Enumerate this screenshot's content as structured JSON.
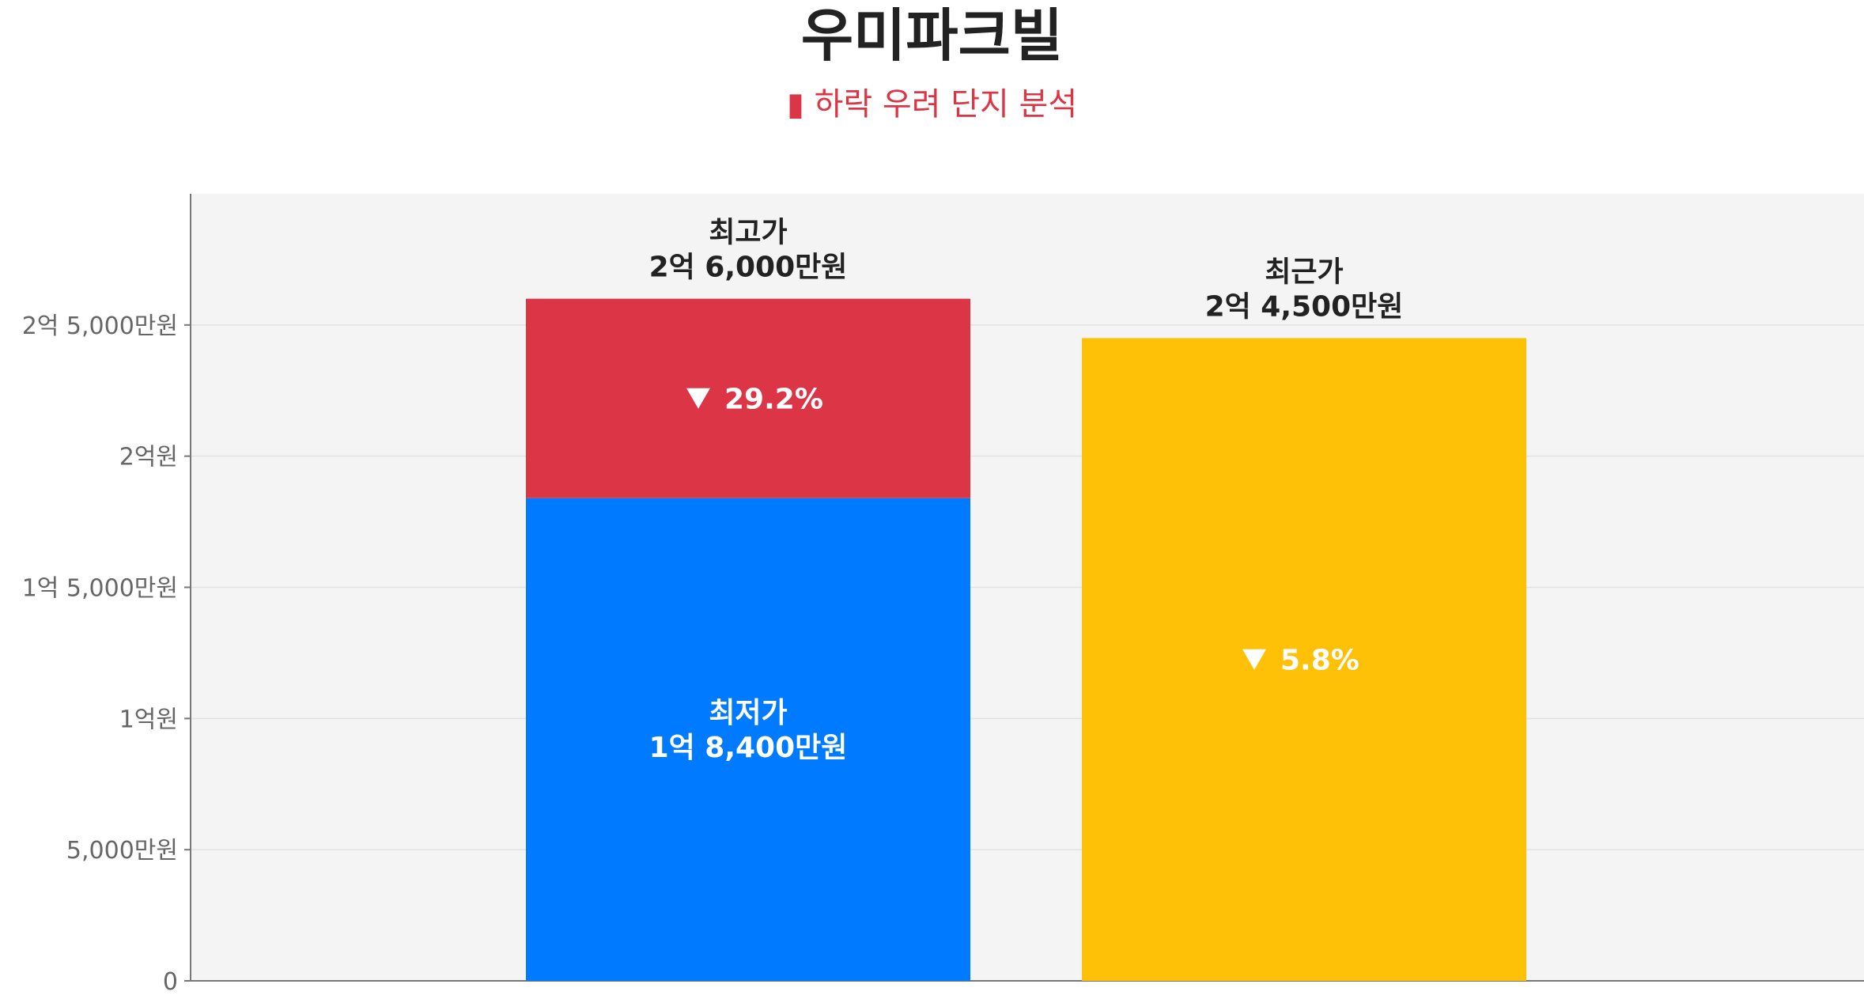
{
  "title": "우미파크빌",
  "subtitle": "하락 우려 단지 분석",
  "subtitle_icon": "warning-icon",
  "colors": {
    "plot_bg": "#f4f4f4",
    "gridline": "#e2e2e2",
    "axis": "#777777",
    "max_segment": "#dc3545",
    "min_segment": "#007bff",
    "recent_bar": "#ffc107",
    "subtitle": "#dc3545"
  },
  "chart_data": {
    "type": "bar",
    "stacked": true,
    "y_unit": "원",
    "ylim": [
      0,
      300000000
    ],
    "y_ticks": [
      {
        "value": 0,
        "label": "0"
      },
      {
        "value": 50000000,
        "label": "5,000만원"
      },
      {
        "value": 100000000,
        "label": "1억원"
      },
      {
        "value": 150000000,
        "label": "1억 5,000만원"
      },
      {
        "value": 200000000,
        "label": "2억원"
      },
      {
        "value": 250000000,
        "label": "2억 5,000만원"
      }
    ],
    "grid": true,
    "bars": [
      {
        "id": "range-bar",
        "segments": [
          {
            "id": "min",
            "from": 0,
            "to": 184000000,
            "color": "#007bff",
            "label_name": "최저가",
            "label_value": "1억 8,400만원"
          },
          {
            "id": "max",
            "from": 184000000,
            "to": 260000000,
            "color": "#dc3545",
            "label_change": "29.2%"
          }
        ],
        "top_label_name": "최고가",
        "top_label_value": "2억 6,000만원",
        "value": 260000000
      },
      {
        "id": "recent-bar",
        "segments": [
          {
            "id": "recent",
            "from": 0,
            "to": 245000000,
            "color": "#ffc107",
            "label_change": "5.8%"
          }
        ],
        "top_label_name": "최근가",
        "top_label_value": "2억 4,500만원",
        "value": 245000000
      }
    ]
  }
}
